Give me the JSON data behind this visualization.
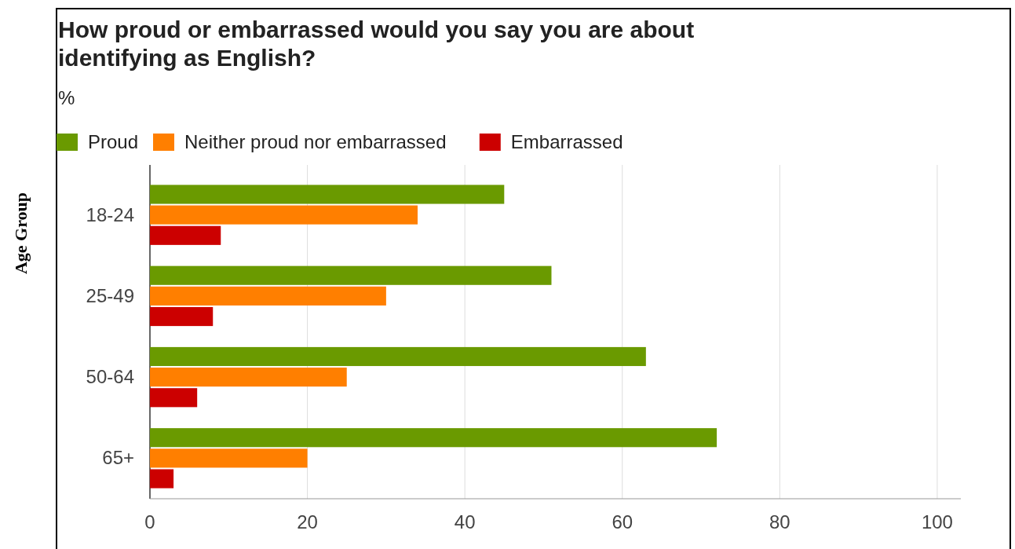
{
  "chart_data": {
    "type": "bar",
    "orientation": "horizontal",
    "title": "How proud or embarrassed would you say you are about identifying as English?",
    "subtitle": "%",
    "ylabel": "Age Group",
    "categories": [
      "18-24",
      "25-49",
      "50-64",
      "65+"
    ],
    "series": [
      {
        "name": "Proud",
        "color": "#6a9a00",
        "values": [
          45,
          51,
          63,
          72
        ]
      },
      {
        "name": "Neither proud nor embarrassed",
        "color": "#ff7f00",
        "values": [
          34,
          30,
          25,
          20
        ]
      },
      {
        "name": "Embarrassed",
        "color": "#cc0000",
        "values": [
          9,
          8,
          6,
          3
        ]
      }
    ],
    "xlim": [
      0,
      103
    ],
    "xticks": [
      0,
      20,
      40,
      60,
      80,
      100
    ],
    "grid": "x",
    "legend": "top left"
  }
}
